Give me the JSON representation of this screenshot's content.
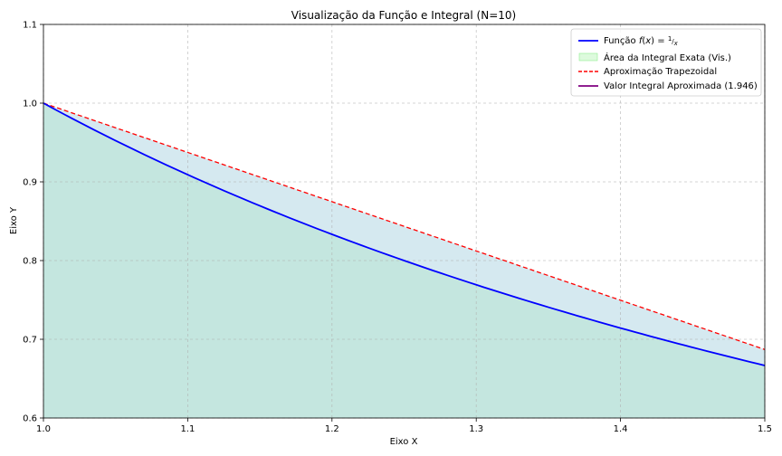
{
  "chart_data": {
    "type": "line",
    "title": "Visualização da Função e Integral (N=10)",
    "xlabel": "Eixo X",
    "ylabel": "Eixo Y",
    "xlim": [
      1.0,
      1.5
    ],
    "ylim": [
      0.6,
      1.1
    ],
    "x_ticks": [
      "1.0",
      "1.1",
      "1.2",
      "1.3",
      "1.4",
      "1.5"
    ],
    "y_ticks": [
      "0.6",
      "0.7",
      "0.8",
      "0.9",
      "1.0",
      "1.1"
    ],
    "grid": true,
    "legend_position": "top-right",
    "series": [
      {
        "name": "Função f(x) = 1/x",
        "style": "solid",
        "color": "#0000ff",
        "x": [
          1.0,
          1.05,
          1.1,
          1.15,
          1.2,
          1.25,
          1.3,
          1.35,
          1.4,
          1.45,
          1.5
        ],
        "y": [
          1.0,
          0.952,
          0.909,
          0.87,
          0.833,
          0.8,
          0.769,
          0.741,
          0.714,
          0.69,
          0.667
        ]
      },
      {
        "name": "Área da Integral Exata (Vis.)",
        "style": "fill",
        "color": "#90ee90"
      },
      {
        "name": "Aproximação Trapezoidal",
        "style": "dashed",
        "color": "#ff0000",
        "x": [
          1.0,
          1.5
        ],
        "y": [
          1.0,
          0.687
        ]
      },
      {
        "name": "Valor Integral Aproximada (1.946)",
        "style": "solid",
        "color": "#800080"
      }
    ],
    "colors": {
      "under_curve_fill": "#c4e6df",
      "between_fill": "#d5e9f0"
    }
  }
}
